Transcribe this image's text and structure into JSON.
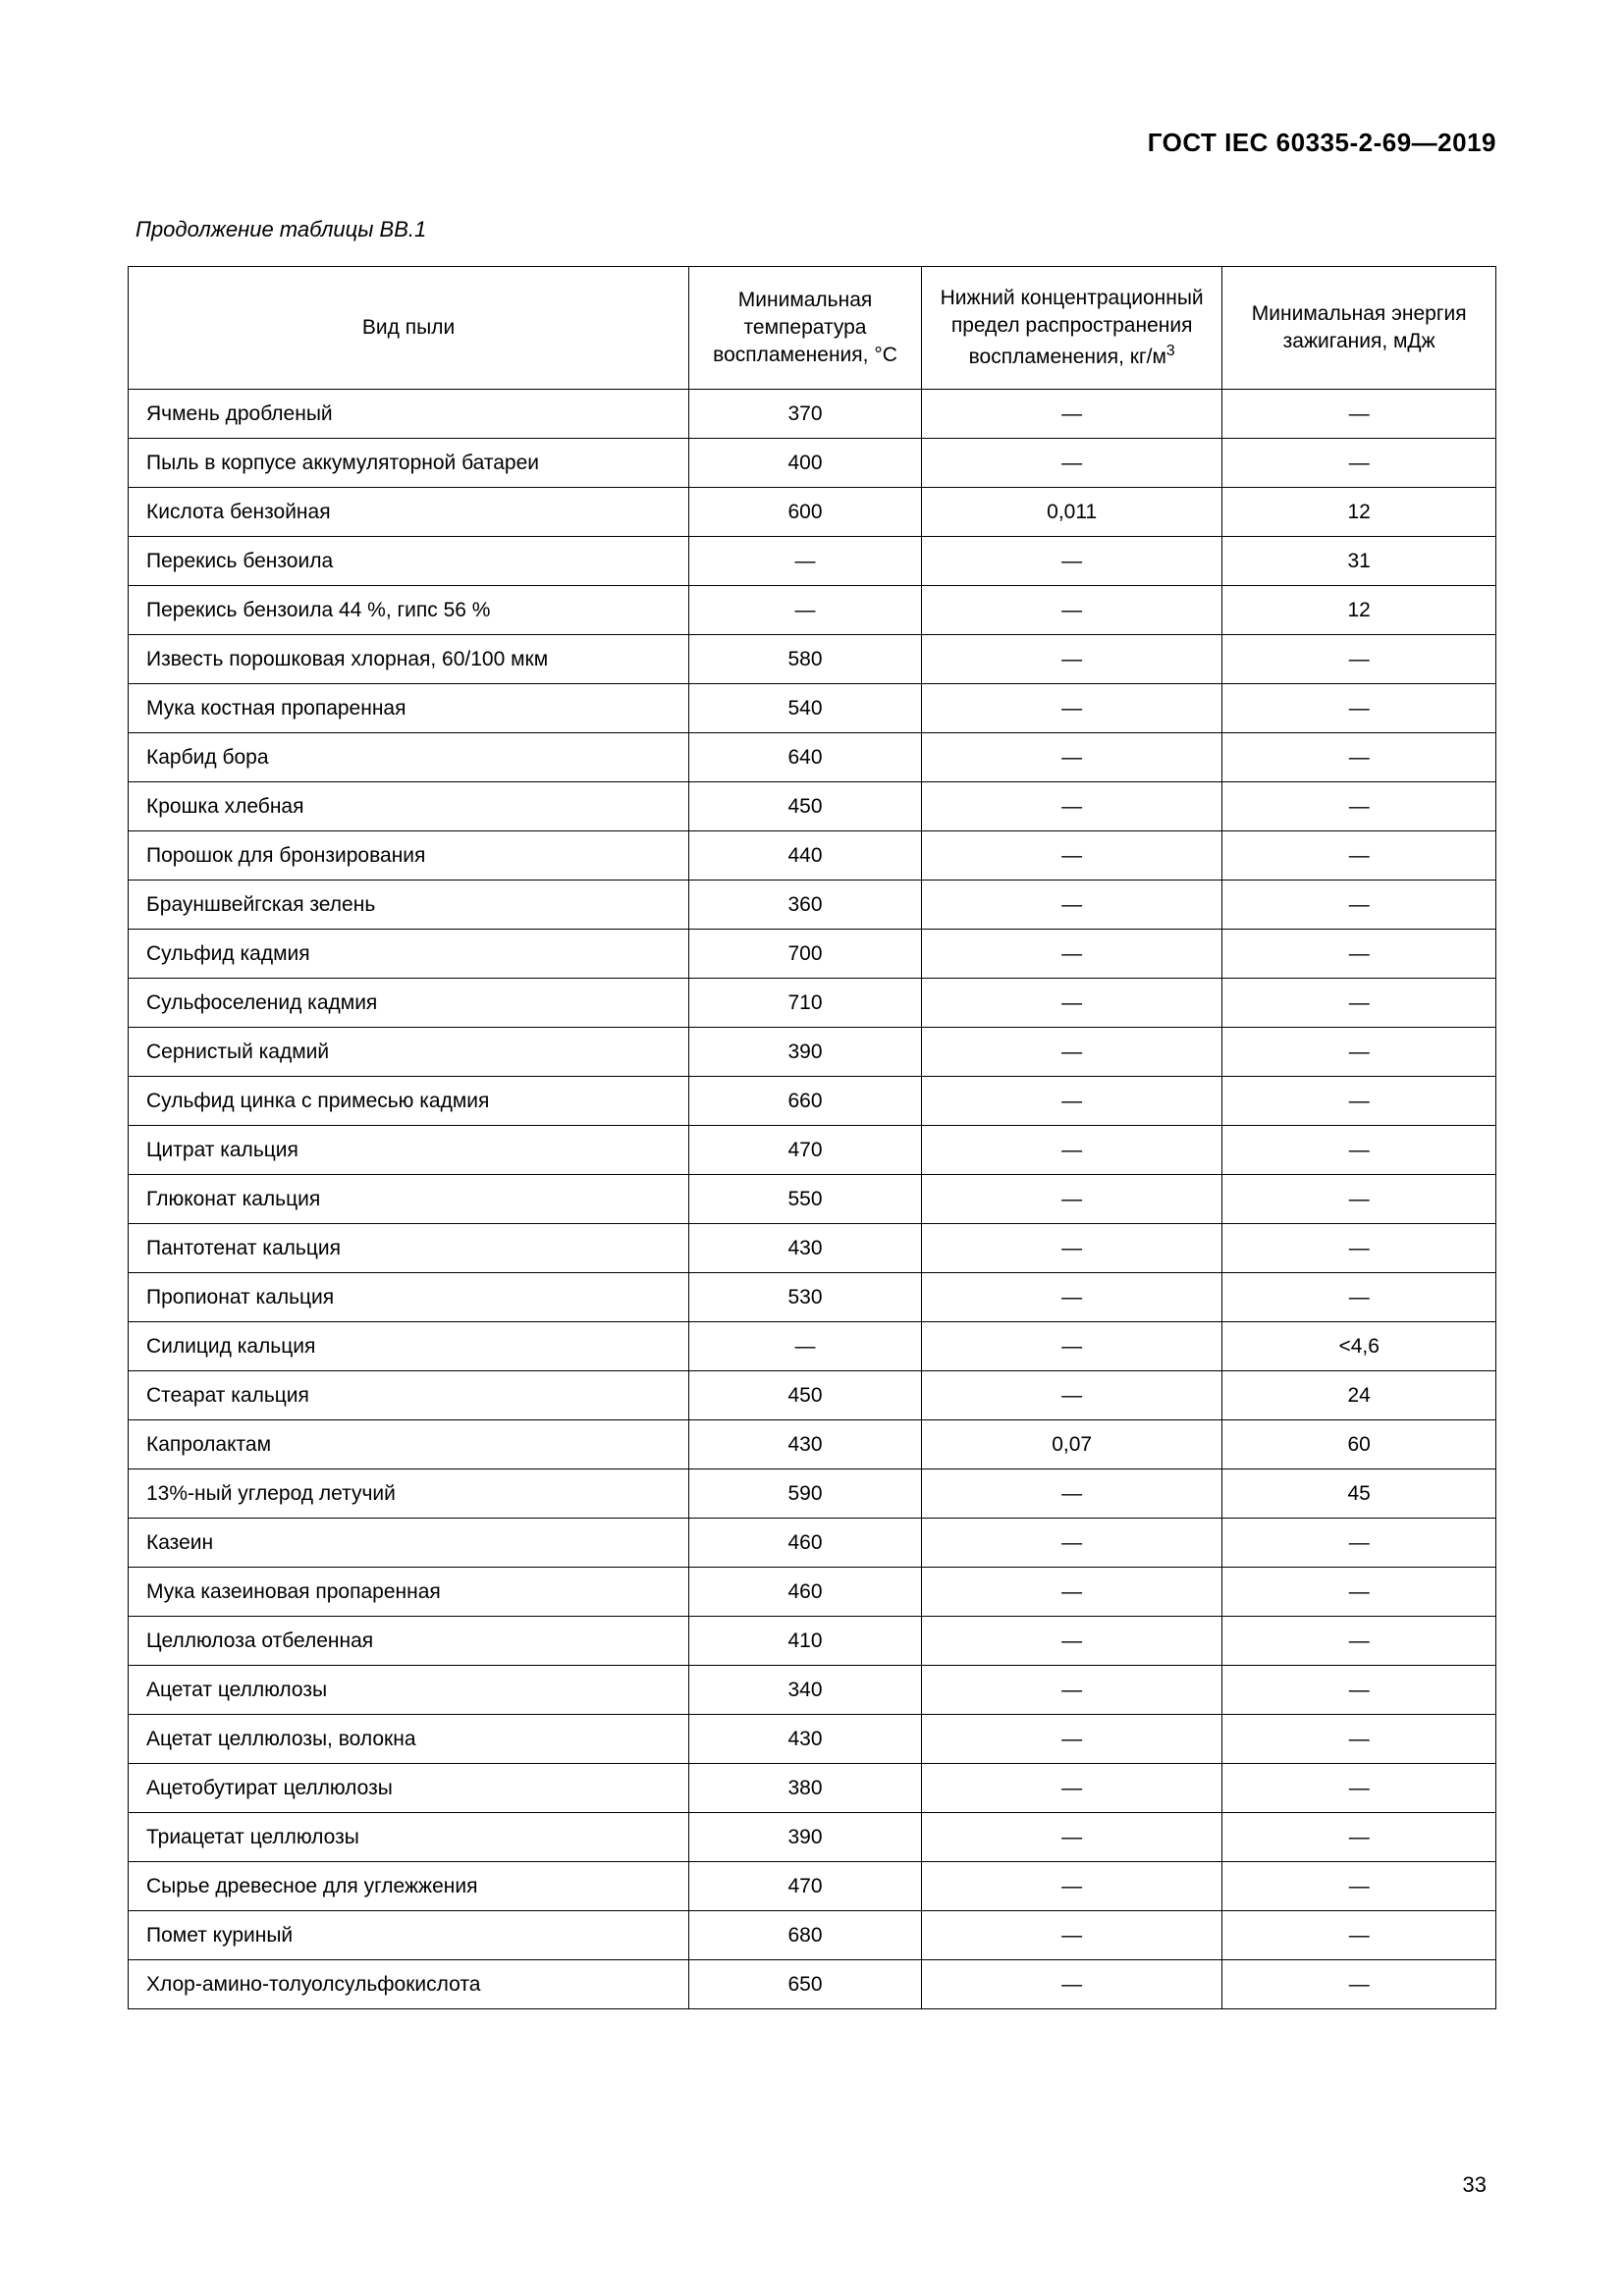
{
  "document": {
    "standard_code": "ГОСТ IEC 60335-2-69—2019",
    "table_caption": "Продолжение таблицы BB.1",
    "page_number": "33"
  },
  "table": {
    "columns": [
      {
        "label": "Вид пыли",
        "width": "41%"
      },
      {
        "label": "Минимальная температура воспламенения, °C",
        "width": "17%"
      },
      {
        "label_html": "Нижний концентрационный предел распространения воспламенения, кг/м",
        "sup": "3",
        "width": "22%"
      },
      {
        "label": "Минимальная энергия зажигания, мДж",
        "width": "20%"
      }
    ],
    "rows": [
      [
        "Ячмень дробленый",
        "370",
        "—",
        "—"
      ],
      [
        "Пыль в корпусе аккумуляторной батареи",
        "400",
        "—",
        "—"
      ],
      [
        "Кислота бензойная",
        "600",
        "0,011",
        "12"
      ],
      [
        "Перекись бензоила",
        "—",
        "—",
        "31"
      ],
      [
        "Перекись бензоила 44 %, гипс 56 %",
        "—",
        "—",
        "12"
      ],
      [
        "Известь порошковая хлорная, 60/100 мкм",
        "580",
        "—",
        "—"
      ],
      [
        "Мука костная пропаренная",
        "540",
        "—",
        "—"
      ],
      [
        "Карбид бора",
        "640",
        "—",
        "—"
      ],
      [
        "Крошка хлебная",
        "450",
        "—",
        "—"
      ],
      [
        "Порошок для бронзирования",
        "440",
        "—",
        "—"
      ],
      [
        "Брауншвейгская зелень",
        "360",
        "—",
        "—"
      ],
      [
        "Сульфид кадмия",
        "700",
        "—",
        "—"
      ],
      [
        "Сульфоселенид кадмия",
        "710",
        "—",
        "—"
      ],
      [
        "Сернистый кадмий",
        "390",
        "—",
        "—"
      ],
      [
        "Сульфид цинка с примесью кадмия",
        "660",
        "—",
        "—"
      ],
      [
        "Цитрат кальция",
        "470",
        "—",
        "—"
      ],
      [
        "Глюконат кальция",
        "550",
        "—",
        "—"
      ],
      [
        "Пантотенат кальция",
        "430",
        "—",
        "—"
      ],
      [
        "Пропионат кальция",
        "530",
        "—",
        "—"
      ],
      [
        "Силицид кальция",
        "—",
        "—",
        "<4,6"
      ],
      [
        "Стеарат кальция",
        "450",
        "—",
        "24"
      ],
      [
        "Капролактам",
        "430",
        "0,07",
        "60"
      ],
      [
        "13%-ный углерод летучий",
        "590",
        "—",
        "45"
      ],
      [
        "Казеин",
        "460",
        "—",
        "—"
      ],
      [
        "Мука казеиновая пропаренная",
        "460",
        "—",
        "—"
      ],
      [
        "Целлюлоза отбеленная",
        "410",
        "—",
        "—"
      ],
      [
        "Ацетат целлюлозы",
        "340",
        "—",
        "—"
      ],
      [
        "Ацетат целлюлозы, волокна",
        "430",
        "—",
        "—"
      ],
      [
        "Ацетобутират целлюлозы",
        "380",
        "—",
        "—"
      ],
      [
        "Триацетат целлюлозы",
        "390",
        "—",
        "—"
      ],
      [
        "Сырье древесное для углежжения",
        "470",
        "—",
        "—"
      ],
      [
        "Помет куриный",
        "680",
        "—",
        "—"
      ],
      [
        "Хлор-амино-толуолсульфокислота",
        "650",
        "—",
        "—"
      ]
    ]
  }
}
